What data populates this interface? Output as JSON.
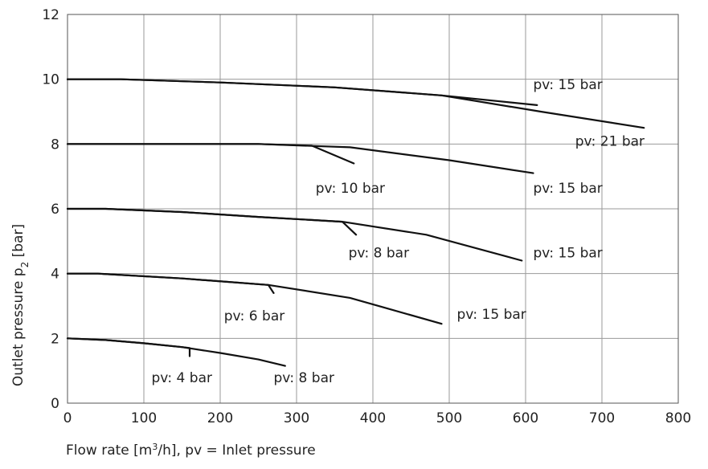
{
  "chart_data": {
    "type": "line",
    "xlabel": "Flow rate [m³/h], pv = Inlet pressure",
    "ylabel": "Outlet pressure p₂ [bar]",
    "xlim": [
      0,
      800
    ],
    "ylim": [
      0,
      12
    ],
    "x_ticks": [
      "0",
      "100",
      "200",
      "300",
      "400",
      "500",
      "600",
      "700",
      "800"
    ],
    "y_ticks": [
      "0",
      "2",
      "4",
      "6",
      "8",
      "10",
      "12"
    ],
    "grid": true,
    "series": [
      {
        "name": "pv: 15 bar",
        "x": [
          0,
          70,
          200,
          350,
          490,
          615
        ],
        "y": [
          10.0,
          10.0,
          9.9,
          9.75,
          9.5,
          9.2
        ]
      },
      {
        "name": "pv: 21 bar",
        "x": [
          0,
          70,
          200,
          350,
          490,
          620,
          755
        ],
        "y": [
          10.0,
          10.0,
          9.9,
          9.75,
          9.5,
          9.0,
          8.5
        ]
      },
      {
        "name": "pv: 10 bar",
        "x": [
          0,
          130,
          250,
          320,
          375
        ],
        "y": [
          8.0,
          8.0,
          8.0,
          7.95,
          7.4
        ]
      },
      {
        "name": "pv: 15 bar",
        "x": [
          0,
          130,
          250,
          370,
          500,
          610
        ],
        "y": [
          8.0,
          8.0,
          8.0,
          7.9,
          7.5,
          7.1
        ]
      },
      {
        "name": "pv: 8 bar",
        "x": [
          0,
          50,
          150,
          250,
          360,
          378
        ],
        "y": [
          6.0,
          6.0,
          5.9,
          5.75,
          5.6,
          5.2
        ]
      },
      {
        "name": "pv: 15 bar",
        "x": [
          0,
          50,
          150,
          250,
          360,
          470,
          595
        ],
        "y": [
          6.0,
          6.0,
          5.9,
          5.75,
          5.6,
          5.2,
          4.4
        ]
      },
      {
        "name": "pv: 6 bar",
        "x": [
          0,
          40,
          150,
          263,
          270
        ],
        "y": [
          4.0,
          4.0,
          3.85,
          3.65,
          3.4
        ]
      },
      {
        "name": "pv: 15 bar",
        "x": [
          0,
          40,
          150,
          263,
          370,
          490
        ],
        "y": [
          4.0,
          4.0,
          3.85,
          3.65,
          3.25,
          2.45
        ]
      },
      {
        "name": "pv: 4 bar",
        "x": [
          0,
          50,
          100,
          150,
          160,
          160
        ],
        "y": [
          2.0,
          1.95,
          1.85,
          1.73,
          1.7,
          1.45
        ]
      },
      {
        "name": "pv: 8 bar",
        "x": [
          0,
          50,
          100,
          150,
          200,
          250,
          285
        ],
        "y": [
          2.0,
          1.95,
          1.85,
          1.73,
          1.55,
          1.35,
          1.15
        ]
      }
    ],
    "annotations": [
      {
        "text": "pv: 15 bar",
        "x": 610,
        "y": 9.7
      },
      {
        "text": "pv: 21 bar",
        "x": 665,
        "y": 7.95
      },
      {
        "text": "pv: 10 bar",
        "x": 325,
        "y": 6.5
      },
      {
        "text": "pv: 15 bar",
        "x": 610,
        "y": 6.5
      },
      {
        "text": "pv: 8 bar",
        "x": 368,
        "y": 4.5
      },
      {
        "text": "pv: 15 bar",
        "x": 610,
        "y": 4.5
      },
      {
        "text": "pv: 6 bar",
        "x": 205,
        "y": 2.55
      },
      {
        "text": "pv: 15 bar",
        "x": 510,
        "y": 2.6
      },
      {
        "text": "pv: 4 bar",
        "x": 110,
        "y": 0.65
      },
      {
        "text": "pv: 8 bar",
        "x": 270,
        "y": 0.65
      }
    ]
  }
}
